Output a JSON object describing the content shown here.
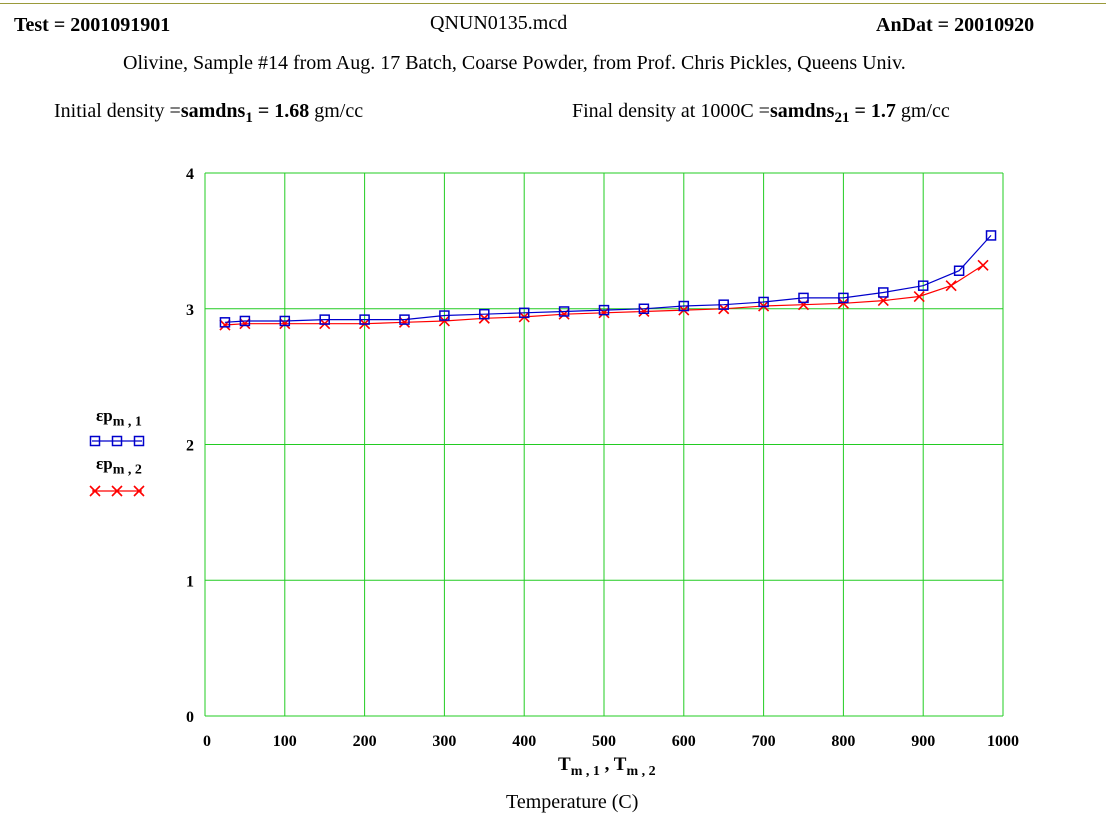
{
  "header": {
    "test_label": "Test",
    "test_value": "2001091901",
    "filename": "QNUN0135.mcd",
    "andat_label": "AnDat",
    "andat_value": "20010920",
    "eq": "="
  },
  "description": "Olivine,  Sample #14 from Aug. 17 Batch, Coarse Powder, from Prof. Chris Pickles, Queens Univ.",
  "density": {
    "initial_label": "Initial density =",
    "initial_var": "samdns",
    "initial_sub": "1",
    "initial_value": "1.68",
    "initial_unit": "gm/cc",
    "final_label": "Final density at 1000C =",
    "final_var": "samdns",
    "final_sub": "21",
    "final_value": "1.7",
    "final_unit": "gm/cc"
  },
  "legend": {
    "s1_main": "εp",
    "s1_sub": "m , 1",
    "s2_main": "εp",
    "s2_sub": "m , 2"
  },
  "xaxis_expr": {
    "t": "T",
    "sub1": "m , 1",
    "comma": " , ",
    "sub2": "m , 2"
  },
  "colors": {
    "grid": "#22cc22",
    "series1": "#0000cc",
    "series2": "#ff0000"
  },
  "chart_data": {
    "type": "line",
    "title": "",
    "xlabel": "Temperature (C)",
    "ylabel": "",
    "xlim": [
      0,
      1000
    ],
    "ylim": [
      0,
      4
    ],
    "xticks": [
      0,
      100,
      200,
      300,
      400,
      500,
      600,
      700,
      800,
      900,
      1000
    ],
    "yticks": [
      0,
      1,
      2,
      3,
      4
    ],
    "grid": true,
    "series": [
      {
        "name": "εp m,1",
        "marker": "square",
        "x": [
          25,
          50,
          100,
          150,
          200,
          250,
          300,
          350,
          400,
          450,
          500,
          550,
          600,
          650,
          700,
          750,
          800,
          850,
          900,
          945,
          985
        ],
        "y": [
          2.9,
          2.91,
          2.91,
          2.92,
          2.92,
          2.92,
          2.95,
          2.96,
          2.97,
          2.98,
          2.99,
          3.0,
          3.02,
          3.03,
          3.05,
          3.08,
          3.08,
          3.12,
          3.17,
          3.28,
          3.54
        ]
      },
      {
        "name": "εp m,2",
        "marker": "x",
        "x": [
          25,
          50,
          100,
          150,
          200,
          250,
          300,
          350,
          400,
          450,
          500,
          550,
          600,
          650,
          700,
          750,
          800,
          850,
          895,
          935,
          975
        ],
        "y": [
          2.88,
          2.89,
          2.89,
          2.89,
          2.89,
          2.9,
          2.91,
          2.93,
          2.94,
          2.96,
          2.97,
          2.98,
          2.99,
          3.0,
          3.02,
          3.03,
          3.04,
          3.06,
          3.09,
          3.17,
          3.32
        ]
      }
    ]
  }
}
